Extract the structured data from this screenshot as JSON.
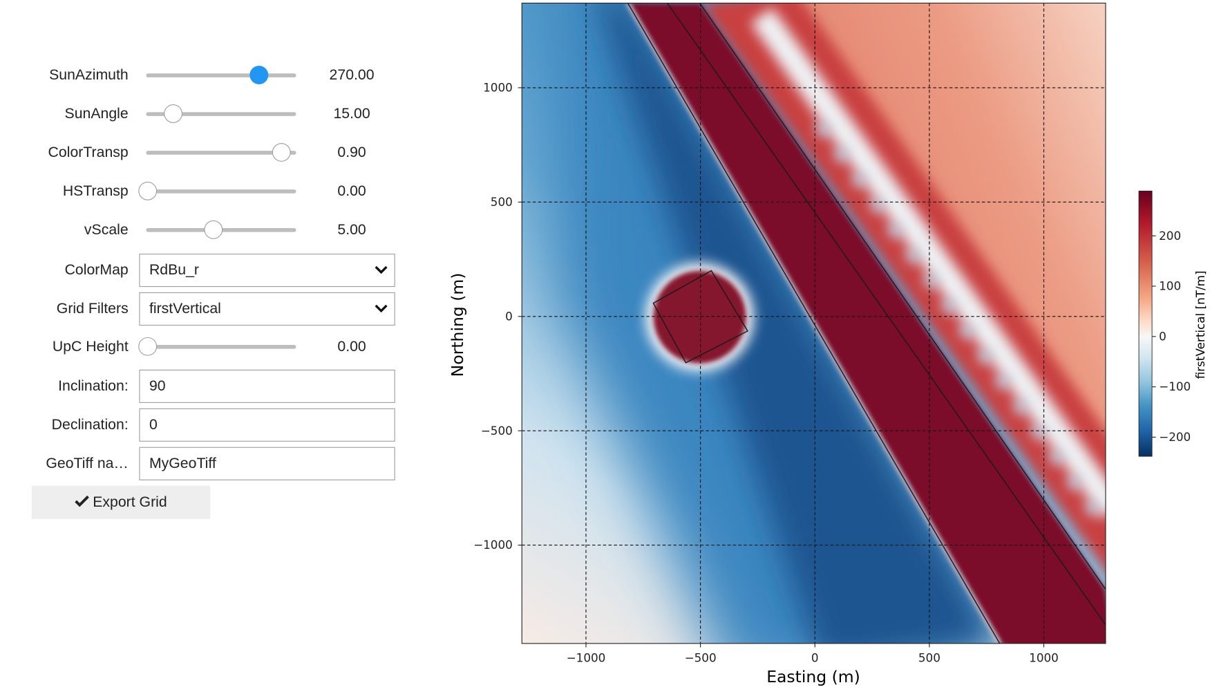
{
  "widgets": [
    {
      "label": "SunAzimuth",
      "value": "270.00"
    },
    {
      "label": "SunAngle",
      "value": "15.00"
    },
    {
      "label": "ColorTransp",
      "value": "0.90"
    },
    {
      "label": "HSTransp",
      "value": "0.00"
    },
    {
      "label": "vScale",
      "value": "5.00"
    },
    {
      "label": "ColorMap",
      "value": "RdBu_r"
    },
    {
      "label": "Grid Filters",
      "value": "firstVertical"
    },
    {
      "label": "UpC Height",
      "value": "0.00"
    },
    {
      "label": "Inclination:",
      "value": "90"
    },
    {
      "label": "Declination:",
      "value": "0"
    },
    {
      "label": "GeoTiff na…",
      "value": "MyGeoTiff"
    }
  ],
  "button": "Export Grid",
  "plot": {
    "xlabel": "Easting (m)",
    "ylabel": "Northing (m)",
    "xlim": [
      -1280,
      1270
    ],
    "ylim": [
      -1430,
      1370
    ],
    "xticks": [
      {
        "value": -1000,
        "label": "−1000"
      },
      {
        "value": -500,
        "label": "−500"
      },
      0,
      500,
      1000
    ],
    "yticks": [
      {
        "value": -1000,
        "label": "−1000"
      },
      {
        "value": -500,
        "label": "−500"
      },
      0,
      500,
      1000
    ],
    "grid": true,
    "colorbar": {
      "label": "firstVertical [nT/m]",
      "lim": [
        -238,
        289
      ],
      "ticks": [
        {
          "value": -200,
          "label": "−200"
        },
        {
          "value": -100,
          "label": "−100"
        },
        0,
        100,
        200
      ]
    }
  }
}
